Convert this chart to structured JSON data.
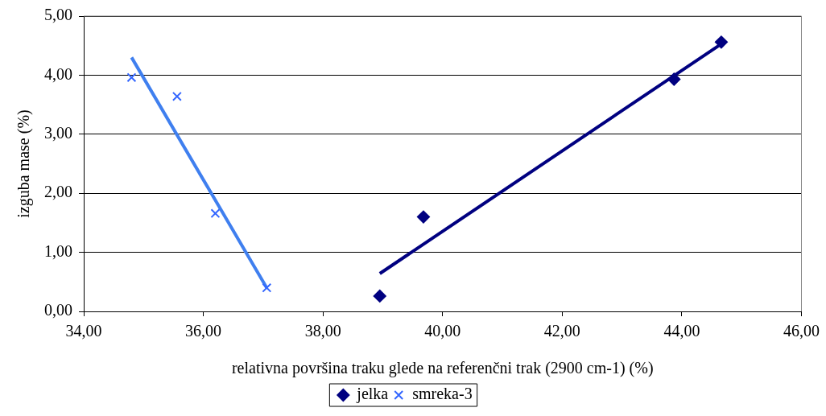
{
  "chart_data": {
    "type": "scatter",
    "xlabel": "relativna površina traku glede na referenčni trak (2900 cm-1) (%)",
    "ylabel": "izguba mase (%)",
    "xlim": [
      34,
      46
    ],
    "xticks": [
      {
        "value": 34,
        "label": "34,00"
      },
      {
        "value": 36,
        "label": "36,00"
      },
      {
        "value": 38,
        "label": "38,00"
      },
      {
        "value": 40,
        "label": "40,00"
      },
      {
        "value": 42,
        "label": "42,00"
      },
      {
        "value": 44,
        "label": "44,00"
      },
      {
        "value": 46,
        "label": "46,00"
      }
    ],
    "ylim": [
      0,
      5
    ],
    "yticks": [
      {
        "value": 0,
        "label": "0,00"
      },
      {
        "value": 1,
        "label": "1,00"
      },
      {
        "value": 2,
        "label": "2,00"
      },
      {
        "value": 3,
        "label": "3,00"
      },
      {
        "value": 4,
        "label": "4,00"
      },
      {
        "value": 5,
        "label": "5,00"
      }
    ],
    "grid": "y",
    "legend": "bottom",
    "series": [
      {
        "name": "jelka",
        "color": "#000080",
        "marker": "diamond",
        "x": [
          38.95,
          39.68,
          43.87,
          44.66
        ],
        "values": [
          0.26,
          1.6,
          3.93,
          4.56
        ]
      },
      {
        "name": "smreka-3",
        "color": "#3366ff",
        "marker": "cross",
        "x": [
          34.8,
          35.56,
          36.2,
          37.06
        ],
        "values": [
          3.96,
          3.64,
          1.66,
          0.4
        ]
      },
      {
        "type": "line",
        "color": "#000080",
        "marker": "none",
        "x": [
          38.95,
          44.72
        ],
        "values": [
          0.64,
          4.57
        ]
      },
      {
        "type": "line",
        "color": "#3f7fef",
        "marker": "none",
        "x": [
          34.8,
          37.06
        ],
        "values": [
          4.3,
          0.4
        ]
      }
    ]
  }
}
